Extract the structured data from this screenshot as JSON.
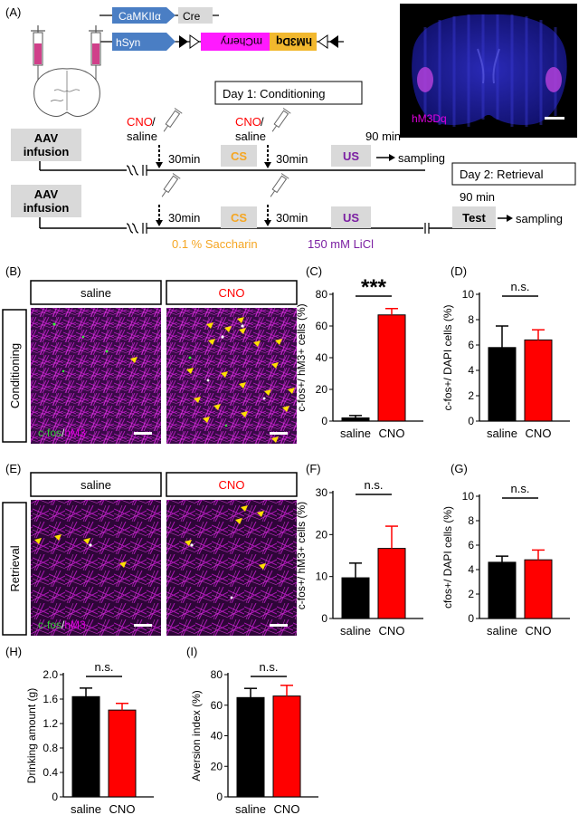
{
  "panelA": {
    "label": "(A)",
    "constructs": {
      "promoter1": "CaMKIIα",
      "gene1": "Cre",
      "promoter2": "hSyn",
      "reporter": "mCherry",
      "receptor": "hM3Dq"
    },
    "inset_label": "hM3Dq",
    "day1_title": "Day 1: Conditioning",
    "day2_title": "Day 2: Retrieval",
    "aav": [
      "AAV",
      "infusion"
    ],
    "cno_red": "CNO",
    "cno_slash": " /",
    "saline": "saline",
    "t30": "30min",
    "cs": "CS",
    "us": "US",
    "t90": "90 min",
    "sampling": "sampling",
    "test": "Test",
    "saccharin": "0.1 % Saccharin",
    "licl": "150 mM LiCl"
  },
  "colors": {
    "cno_bar": "#ff0000",
    "saline_bar": "#000000",
    "cs_text": "#f5a623",
    "us_text": "#7b1fa2",
    "magenta": "#e000e0",
    "cfos_green": "#33cc33"
  },
  "images": {
    "B": {
      "label": "(B)",
      "row_label": "Conditioning",
      "col_saline": "saline",
      "col_cno": "CNO",
      "legend_a": "c-fos",
      "legend_sep": "/",
      "legend_b": "hM3"
    },
    "E": {
      "label": "(E)",
      "row_label": "Retrieval",
      "col_saline": "saline",
      "col_cno": "CNO",
      "legend_a": "c-fos",
      "legend_sep": "/",
      "legend_b": "hM3"
    }
  },
  "chart_data": [
    {
      "id": "C",
      "panel": "(C)",
      "type": "bar",
      "categories": [
        "saline",
        "CNO"
      ],
      "values": [
        2,
        67
      ],
      "errors": [
        1.5,
        4
      ],
      "ylabel": "c-fos+/ hM3+ cells (%)",
      "ylim": [
        0,
        80
      ],
      "yticks": [
        0,
        20,
        40,
        60,
        80
      ],
      "significance": "***"
    },
    {
      "id": "D",
      "panel": "(D)",
      "type": "bar",
      "categories": [
        "saline",
        "CNO"
      ],
      "values": [
        5.8,
        6.4
      ],
      "errors": [
        1.7,
        0.8
      ],
      "ylabel": "c-fos+/ DAPI cells (%)",
      "ylim": [
        0,
        10
      ],
      "yticks": [
        0,
        2,
        4,
        6,
        8,
        10
      ],
      "significance": "n.s."
    },
    {
      "id": "F",
      "panel": "(F)",
      "type": "bar",
      "categories": [
        "saline",
        "CNO"
      ],
      "values": [
        9.7,
        16.7
      ],
      "errors": [
        3.5,
        5.3
      ],
      "ylabel": "c-fos+/ hM3+ cells (%)",
      "ylim": [
        0,
        30
      ],
      "yticks": [
        0,
        10,
        20,
        30
      ],
      "significance": "n.s."
    },
    {
      "id": "G",
      "panel": "(G)",
      "type": "bar",
      "categories": [
        "saline",
        "CNO"
      ],
      "values": [
        4.6,
        4.8
      ],
      "errors": [
        0.5,
        0.8
      ],
      "ylabel": "cfos+/ DAPI  cells (%)",
      "ylim": [
        0,
        10
      ],
      "yticks": [
        0,
        2,
        4,
        6,
        8,
        10
      ],
      "significance": "n.s."
    },
    {
      "id": "H",
      "panel": "(H)",
      "type": "bar",
      "categories": [
        "saline",
        "CNO"
      ],
      "values": [
        1.64,
        1.42
      ],
      "errors": [
        0.14,
        0.11
      ],
      "ylabel": "Drinking amount (g)",
      "ylim": [
        0,
        2.0
      ],
      "yticks": [
        "0",
        "0.4",
        "0.8",
        "1.2",
        "1.6",
        "2.0"
      ],
      "significance": "n.s."
    },
    {
      "id": "I",
      "panel": "(I)",
      "type": "bar",
      "categories": [
        "saline",
        "CNO"
      ],
      "values": [
        65,
        66
      ],
      "errors": [
        6,
        7
      ],
      "ylabel": "Aversion index (%)",
      "ylim": [
        0,
        80
      ],
      "yticks": [
        0,
        20,
        40,
        60,
        80
      ],
      "significance": "n.s."
    }
  ]
}
